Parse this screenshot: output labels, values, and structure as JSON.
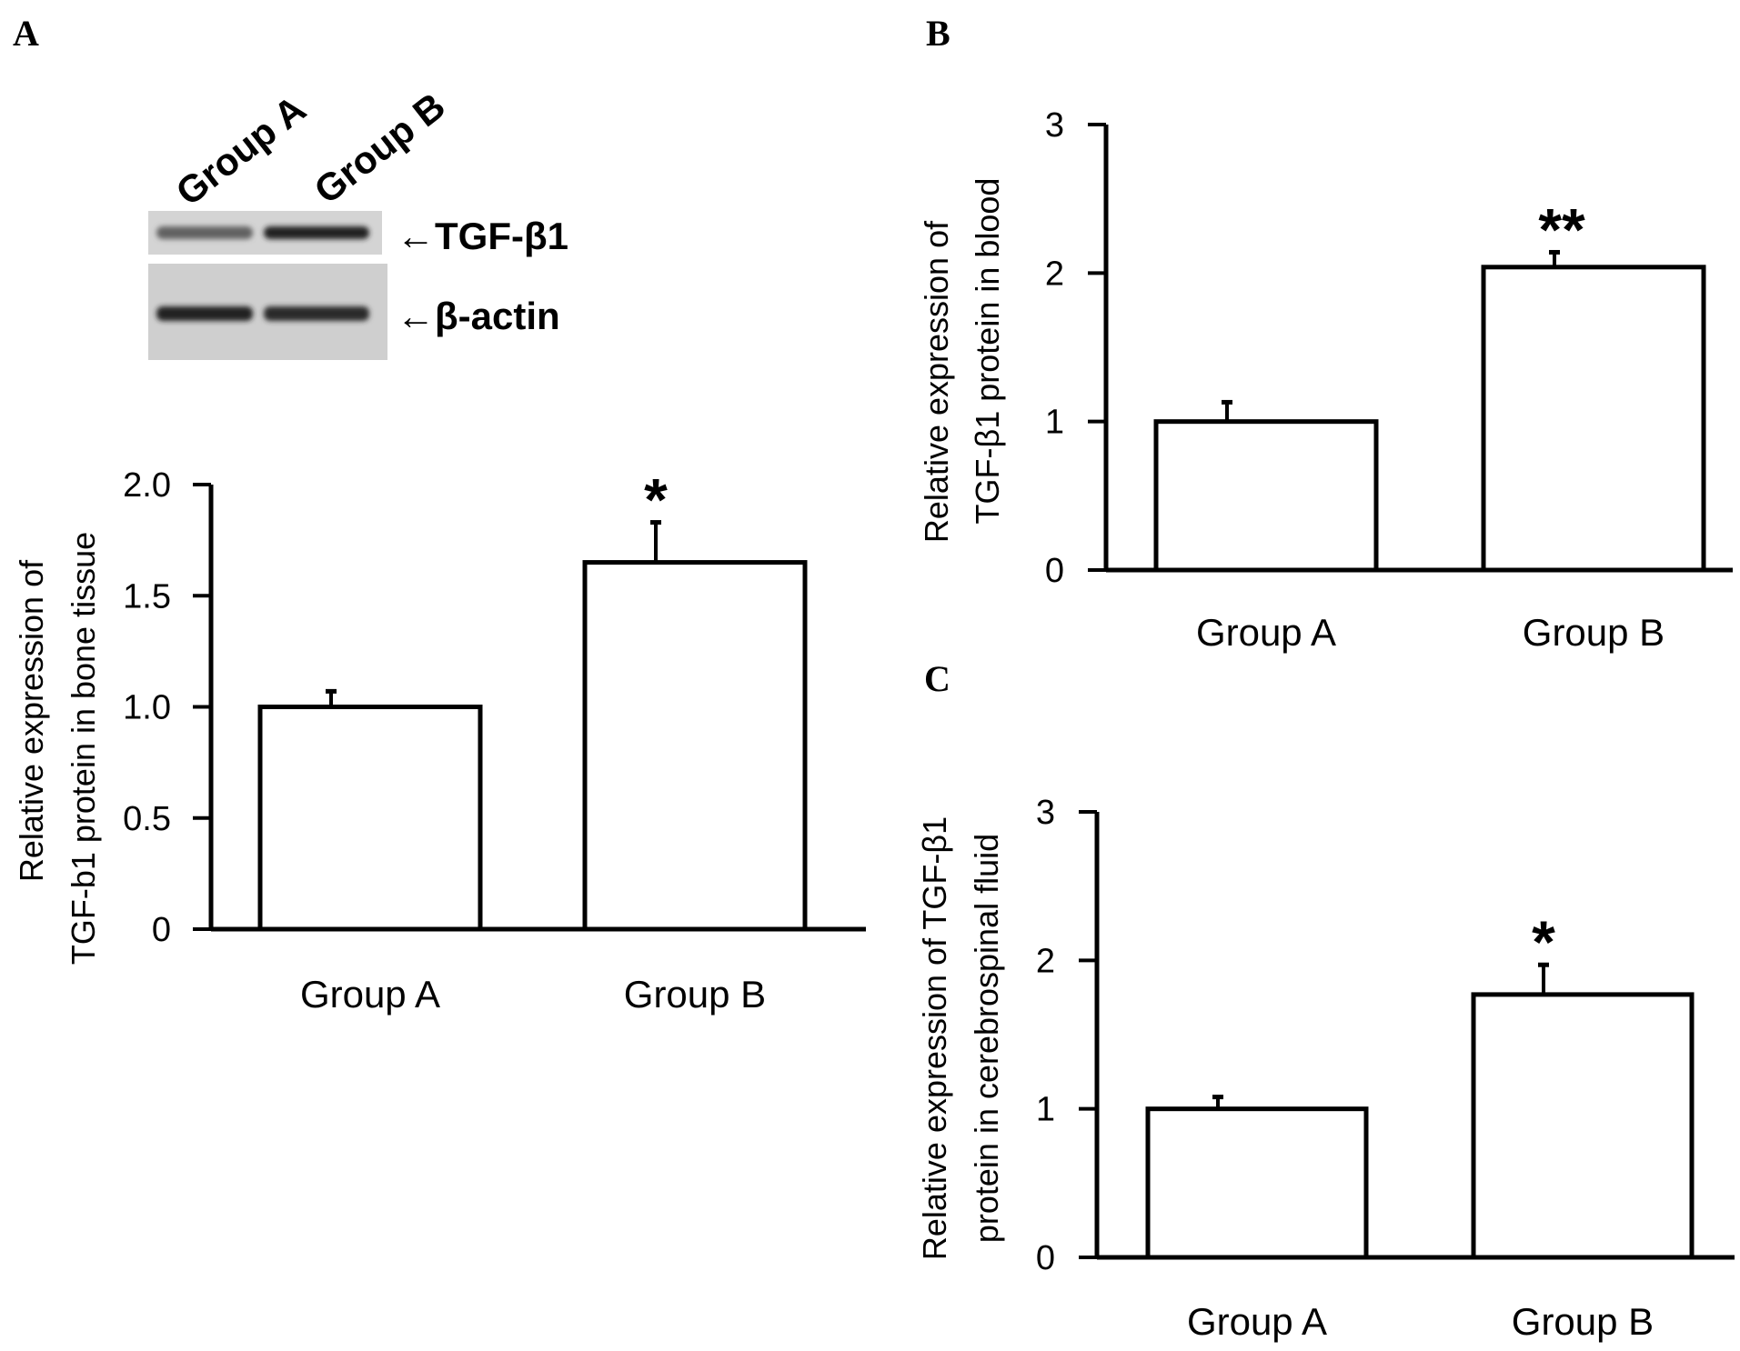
{
  "panels": {
    "A": {
      "letter": "A"
    },
    "B": {
      "letter": "B"
    },
    "C": {
      "letter": "C"
    }
  },
  "western_blot": {
    "lanes": [
      "Group A",
      "Group B"
    ],
    "bands": [
      {
        "label": "←TGF-β1",
        "intensities": [
          0.55,
          0.9
        ]
      },
      {
        "label": "←β-actin",
        "intensities": [
          0.9,
          0.85
        ]
      }
    ]
  },
  "chart_data": [
    {
      "panel": "A",
      "type": "bar",
      "categories": [
        "Group A",
        "Group B"
      ],
      "values": [
        1.0,
        1.65
      ],
      "errors": [
        0.07,
        0.18
      ],
      "significance": [
        "",
        "*"
      ],
      "ylabel": [
        "Relative expression of",
        "TGF-b1 protein in bone tissue"
      ],
      "ylim": [
        0,
        2.0
      ],
      "yticks": [
        0,
        0.5,
        1.0,
        1.5,
        2.0
      ],
      "ytick_labels": [
        "0",
        "0.5",
        "1.0",
        "1.5",
        "2.0"
      ],
      "grid": false
    },
    {
      "panel": "B",
      "type": "bar",
      "categories": [
        "Group A",
        "Group B"
      ],
      "values": [
        1.0,
        2.04
      ],
      "errors": [
        0.13,
        0.1
      ],
      "significance": [
        "",
        "**"
      ],
      "ylabel": [
        "Relative expression of",
        "TGF-β1 protein in blood"
      ],
      "ylim": [
        0,
        3
      ],
      "yticks": [
        0,
        1,
        2,
        3
      ],
      "ytick_labels": [
        "0",
        "1",
        "2",
        "3"
      ],
      "grid": false
    },
    {
      "panel": "C",
      "type": "bar",
      "categories": [
        "Group A",
        "Group B"
      ],
      "values": [
        1.0,
        1.77
      ],
      "errors": [
        0.08,
        0.2
      ],
      "significance": [
        "",
        "*"
      ],
      "ylabel": [
        "Relative expression of TGF-β1",
        "protein in cerebrospinal fluid"
      ],
      "ylim": [
        0,
        3
      ],
      "yticks": [
        0,
        1,
        2,
        3
      ],
      "ytick_labels": [
        "0",
        "1",
        "2",
        "3"
      ],
      "grid": false
    }
  ]
}
